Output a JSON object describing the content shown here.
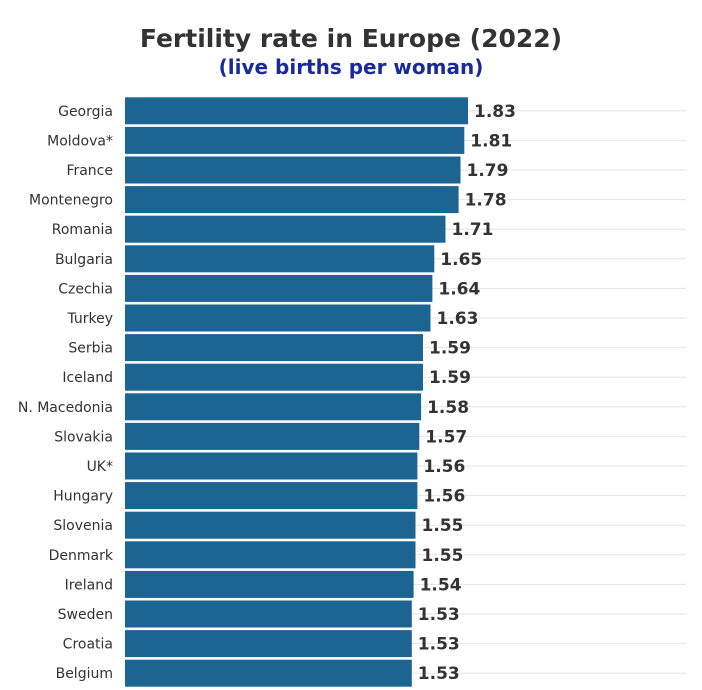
{
  "chart_data": {
    "type": "bar",
    "orientation": "horizontal",
    "title": "Fertility rate in Europe (2022)",
    "subtitle": "(live births per woman)",
    "xlabel": "",
    "ylabel": "",
    "xlim": [
      0,
      1.83
    ],
    "grid": true,
    "bar_color": "#1c6491",
    "label_color": "#333333",
    "categories": [
      "Georgia",
      "Moldova*",
      "France",
      "Montenegro",
      "Romania",
      "Bulgaria",
      "Czechia",
      "Turkey",
      "Serbia",
      "Iceland",
      "N. Macedonia",
      "Slovakia",
      "UK*",
      "Hungary",
      "Slovenia",
      "Denmark",
      "Ireland",
      "Sweden",
      "Croatia",
      "Belgium"
    ],
    "values": [
      1.83,
      1.81,
      1.79,
      1.78,
      1.71,
      1.65,
      1.64,
      1.63,
      1.59,
      1.59,
      1.58,
      1.57,
      1.56,
      1.56,
      1.55,
      1.55,
      1.54,
      1.53,
      1.53,
      1.53
    ],
    "value_labels": [
      "1.83",
      "1.81",
      "1.79",
      "1.78",
      "1.71",
      "1.65",
      "1.64",
      "1.63",
      "1.59",
      "1.59",
      "1.58",
      "1.57",
      "1.56",
      "1.56",
      "1.55",
      "1.55",
      "1.54",
      "1.53",
      "1.53",
      "1.53"
    ]
  }
}
